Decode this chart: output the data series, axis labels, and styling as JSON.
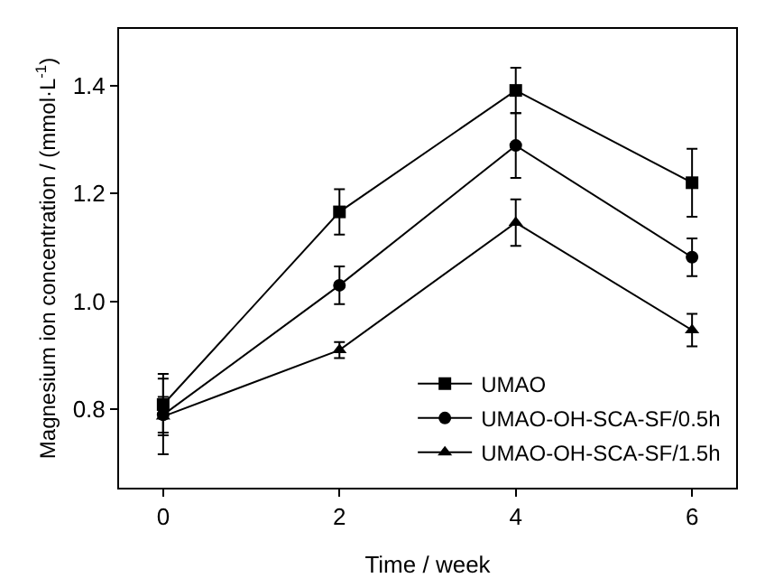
{
  "chart_data": {
    "type": "line",
    "xlabel": "Time / week",
    "ylabel": "Magnesium ion concentration / (mmol·L$^{-1}$)",
    "x": [
      0,
      2,
      4,
      6
    ],
    "xlim": [
      -0.5,
      6.5
    ],
    "xticks": [
      0,
      2,
      4,
      6
    ],
    "ylim": [
      0.655,
      1.505
    ],
    "yticks": [
      0.8,
      {
        "value": 1.0,
        "label": "1.0"
      },
      1.2,
      1.4
    ],
    "grid": false,
    "legend": "bottom right",
    "line_style": "solid",
    "series": [
      {
        "name": "UMAO",
        "color": "#000000",
        "marker": "square",
        "values": [
          0.809,
          1.166,
          1.391,
          1.22
        ],
        "errors": [
          0.057,
          0.042,
          0.042,
          0.063
        ]
      },
      {
        "name": "UMAO-OH-SCA-SF/0.5h",
        "color": "#000000",
        "marker": "circle",
        "values": [
          0.79,
          1.03,
          1.289,
          1.082
        ],
        "errors": [
          0.033,
          0.035,
          0.06,
          0.035
        ]
      },
      {
        "name": "UMAO-OH-SCA-SF/1.5h",
        "color": "#000000",
        "marker": "triangle",
        "values": [
          0.787,
          0.91,
          1.146,
          0.947
        ],
        "errors": [
          0.07,
          0.015,
          0.043,
          0.03
        ]
      }
    ]
  }
}
